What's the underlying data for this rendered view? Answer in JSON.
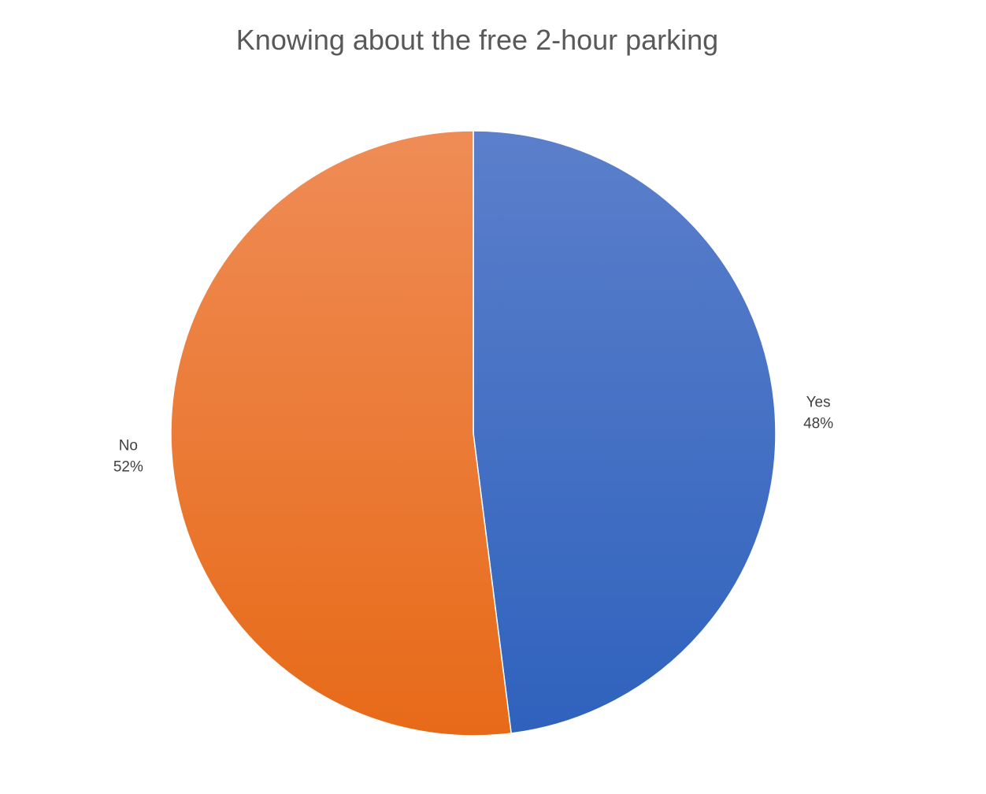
{
  "chart_data": {
    "type": "pie",
    "title": "Knowing about the free 2-hour parking",
    "slices": [
      {
        "label": "Yes",
        "value": 48,
        "value_label": "48%",
        "color_top": "#5b7fcb",
        "color_bottom": "#2f62bd"
      },
      {
        "label": "No",
        "value": 52,
        "value_label": "52%",
        "color_top": "#ef8c56",
        "color_bottom": "#e76a18"
      }
    ],
    "start_angle_deg": 0,
    "direction": "clockwise",
    "legend": "none",
    "data_labels": "outside"
  }
}
